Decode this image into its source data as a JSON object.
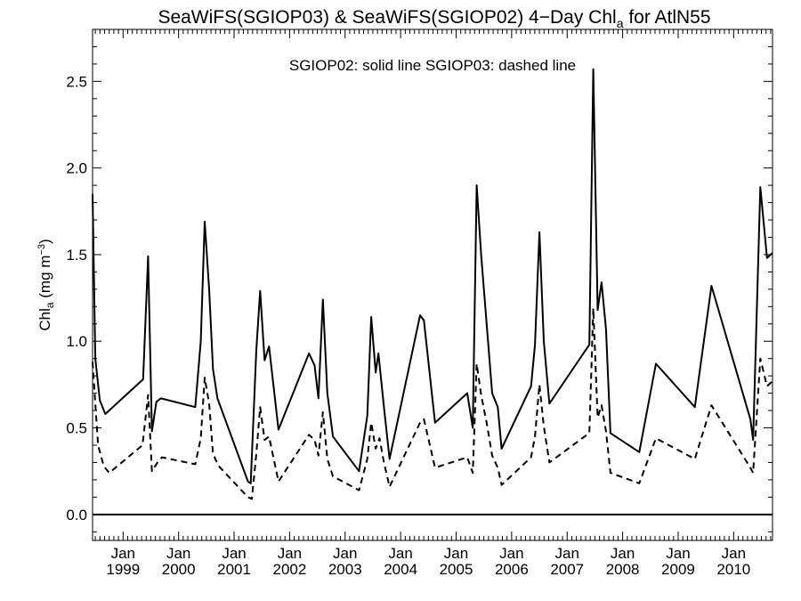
{
  "chart_data": {
    "type": "line",
    "title_main": "SeaWiFS(SGIOP03) & SeaWiFS(SGIOP02) 4−Day Chl",
    "title_sub": "a",
    "title_tail": " for AtlN55",
    "ylabel_main": "Chl",
    "ylabel_sub": "a",
    "ylabel_unit": " (mg m",
    "ylabel_sup": "−3",
    "ylabel_close": ")",
    "annotation": "SGIOP02: solid line   SGIOP03: dashed line",
    "ylim": [
      -0.15,
      2.8
    ],
    "yticks": [
      0.0,
      0.5,
      1.0,
      1.5,
      2.0,
      2.5
    ],
    "ytick_labels": [
      "0.0",
      "0.5",
      "1.0",
      "1.5",
      "2.0",
      "2.5"
    ],
    "xlim": [
      1998.45,
      2010.7
    ],
    "x_month_label": "Jan",
    "x_years": [
      1999,
      2000,
      2001,
      2002,
      2003,
      2004,
      2005,
      2006,
      2007,
      2008,
      2009,
      2010
    ],
    "x_year_labels": [
      "1999",
      "2000",
      "2001",
      "2002",
      "2003",
      "2004",
      "2005",
      "2006",
      "2007",
      "2008",
      "2009",
      "2010"
    ],
    "zero_line": 0.0,
    "series": [
      {
        "name": "SGIOP02",
        "style": "solid",
        "x": [
          1998.45,
          1998.5,
          1998.58,
          1998.68,
          1999.36,
          1999.45,
          1999.52,
          1999.6,
          1999.68,
          2000.3,
          2000.4,
          2000.47,
          2000.55,
          2000.62,
          2000.7,
          2001.25,
          2001.3,
          2001.4,
          2001.47,
          2001.55,
          2001.63,
          2001.8,
          2002.35,
          2002.45,
          2002.52,
          2002.6,
          2002.68,
          2002.78,
          2003.25,
          2003.4,
          2003.47,
          2003.55,
          2003.6,
          2003.7,
          2003.8,
          2004.35,
          2004.42,
          2004.62,
          2005.2,
          2005.3,
          2005.37,
          2005.45,
          2005.55,
          2005.65,
          2005.75,
          2005.82,
          2006.35,
          2006.42,
          2006.5,
          2006.58,
          2006.68,
          2007.4,
          2007.47,
          2007.55,
          2007.62,
          2007.7,
          2007.78,
          2008.3,
          2008.6,
          2009.3,
          2009.6,
          2010.3,
          2010.35,
          2010.48,
          2010.6,
          2010.7
        ],
        "y": [
          1.85,
          0.9,
          0.66,
          0.58,
          0.78,
          1.49,
          0.48,
          0.65,
          0.67,
          0.62,
          1.0,
          1.69,
          1.3,
          0.84,
          0.67,
          0.19,
          0.18,
          0.95,
          1.29,
          0.89,
          0.97,
          0.49,
          0.93,
          0.86,
          0.67,
          1.24,
          0.7,
          0.45,
          0.25,
          0.57,
          1.14,
          0.82,
          0.93,
          0.62,
          0.32,
          1.15,
          1.12,
          0.53,
          0.7,
          0.5,
          1.9,
          1.5,
          1.1,
          0.7,
          0.62,
          0.38,
          0.74,
          0.98,
          1.63,
          1.0,
          0.64,
          0.98,
          2.57,
          1.18,
          1.34,
          1.07,
          0.47,
          0.36,
          0.87,
          0.62,
          1.32,
          0.55,
          0.43,
          1.89,
          1.48,
          1.51
        ]
      },
      {
        "name": "SGIOP03",
        "style": "dashed",
        "x": [
          1998.45,
          1998.55,
          1998.65,
          1998.75,
          1999.35,
          1999.45,
          1999.52,
          1999.62,
          1999.7,
          2000.3,
          2000.4,
          2000.47,
          2000.55,
          2000.62,
          2000.72,
          2001.25,
          2001.32,
          2001.4,
          2001.47,
          2001.55,
          2001.63,
          2001.8,
          2002.35,
          2002.45,
          2002.52,
          2002.6,
          2002.68,
          2002.78,
          2003.25,
          2003.4,
          2003.47,
          2003.55,
          2003.62,
          2003.7,
          2003.8,
          2004.35,
          2004.42,
          2004.62,
          2005.2,
          2005.3,
          2005.37,
          2005.45,
          2005.55,
          2005.65,
          2005.75,
          2005.82,
          2006.35,
          2006.42,
          2006.5,
          2006.58,
          2006.68,
          2007.4,
          2007.47,
          2007.55,
          2007.62,
          2007.7,
          2007.78,
          2008.3,
          2008.6,
          2009.3,
          2009.6,
          2010.3,
          2010.35,
          2010.48,
          2010.6,
          2010.7
        ],
        "y": [
          0.88,
          0.4,
          0.28,
          0.24,
          0.4,
          0.69,
          0.25,
          0.3,
          0.33,
          0.29,
          0.44,
          0.79,
          0.64,
          0.35,
          0.28,
          0.1,
          0.09,
          0.35,
          0.62,
          0.43,
          0.45,
          0.19,
          0.46,
          0.43,
          0.34,
          0.59,
          0.32,
          0.22,
          0.14,
          0.32,
          0.53,
          0.38,
          0.44,
          0.3,
          0.16,
          0.53,
          0.55,
          0.27,
          0.33,
          0.24,
          0.87,
          0.69,
          0.53,
          0.34,
          0.27,
          0.17,
          0.33,
          0.45,
          0.75,
          0.51,
          0.3,
          0.47,
          1.19,
          0.56,
          0.63,
          0.48,
          0.24,
          0.18,
          0.44,
          0.32,
          0.63,
          0.27,
          0.24,
          0.9,
          0.74,
          0.77
        ]
      }
    ]
  }
}
